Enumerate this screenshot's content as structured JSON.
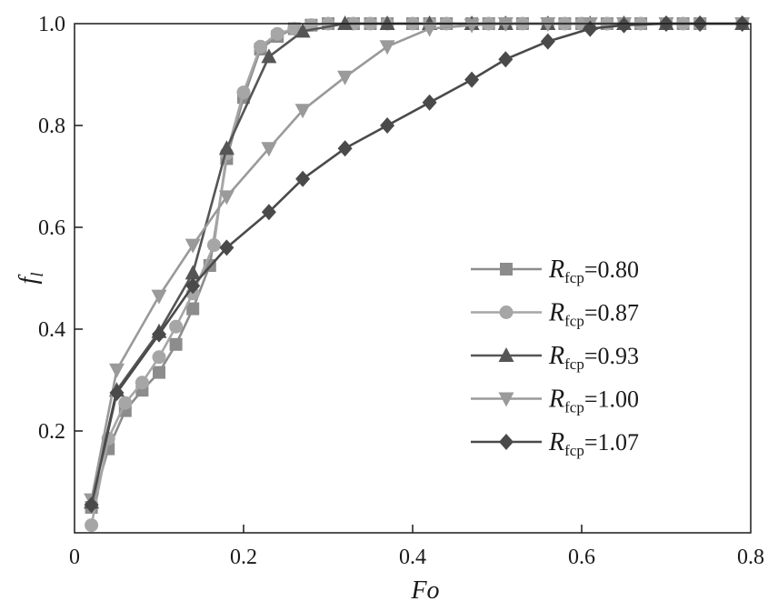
{
  "chart_data": {
    "type": "line",
    "title": "",
    "xlabel": "Fo",
    "ylabel": {
      "main": "f",
      "sub": "l"
    },
    "xlim": [
      0,
      0.8
    ],
    "ylim": [
      0,
      1.0
    ],
    "x_ticks": [
      0,
      0.2,
      0.4,
      0.6,
      0.8
    ],
    "y_ticks": [
      0.2,
      0.4,
      0.6,
      0.8,
      1.0
    ],
    "x_tick_labels": [
      "0",
      "0.2",
      "0.4",
      "0.6",
      "0.8"
    ],
    "y_tick_labels": [
      "0.2",
      "0.4",
      "0.6",
      "0.8",
      "1.0"
    ],
    "grid": false,
    "legend_position": "right",
    "series": [
      {
        "name": "R_fcp=0.80",
        "label_symbol": "R",
        "label_sub": "fcp",
        "label_value": "=0.80",
        "marker": "square",
        "color": "#8c8c8c",
        "x": [
          0.02,
          0.04,
          0.06,
          0.08,
          0.1,
          0.12,
          0.14,
          0.16,
          0.18,
          0.2,
          0.22,
          0.24,
          0.26,
          0.28,
          0.3,
          0.33,
          0.35,
          0.37,
          0.4,
          0.42,
          0.44,
          0.47,
          0.49,
          0.51,
          0.53,
          0.56,
          0.58,
          0.6,
          0.63,
          0.65,
          0.67,
          0.7,
          0.72,
          0.74,
          0.79
        ],
        "y": [
          0.05,
          0.165,
          0.24,
          0.28,
          0.315,
          0.37,
          0.44,
          0.525,
          0.735,
          0.855,
          0.95,
          0.975,
          0.99,
          0.997,
          1.0,
          1.0,
          1.0,
          1.0,
          1.0,
          1.0,
          1.0,
          1.0,
          1.0,
          1.0,
          1.0,
          1.0,
          1.0,
          1.0,
          1.0,
          1.0,
          1.0,
          1.0,
          1.0,
          1.0,
          1.0
        ]
      },
      {
        "name": "R_fcp=0.87",
        "label_symbol": "R",
        "label_sub": "fcp",
        "label_value": "=0.87",
        "marker": "circle",
        "color": "#a6a6a6",
        "x": [
          0.02,
          0.04,
          0.06,
          0.08,
          0.1,
          0.12,
          0.14,
          0.165,
          0.18,
          0.2,
          0.22,
          0.24,
          0.26,
          0.28,
          0.3,
          0.33,
          0.35,
          0.37,
          0.4,
          0.42,
          0.44,
          0.47,
          0.49,
          0.51,
          0.53,
          0.56,
          0.58,
          0.6,
          0.63,
          0.65,
          0.67,
          0.7,
          0.72,
          0.74,
          0.79
        ],
        "y": [
          0.015,
          0.185,
          0.255,
          0.295,
          0.345,
          0.405,
          0.47,
          0.565,
          0.745,
          0.865,
          0.955,
          0.98,
          0.99,
          0.997,
          1.0,
          1.0,
          1.0,
          1.0,
          1.0,
          1.0,
          1.0,
          1.0,
          1.0,
          1.0,
          1.0,
          1.0,
          1.0,
          1.0,
          1.0,
          1.0,
          1.0,
          1.0,
          1.0,
          1.0,
          1.0
        ]
      },
      {
        "name": "R_fcp=0.93",
        "label_symbol": "R",
        "label_sub": "fcp",
        "label_value": "=0.93",
        "marker": "triangle-up",
        "color": "#555555",
        "x": [
          0.02,
          0.05,
          0.1,
          0.14,
          0.18,
          0.23,
          0.27,
          0.32,
          0.37,
          0.42,
          0.47,
          0.51,
          0.56,
          0.61,
          0.65,
          0.7,
          0.79
        ],
        "y": [
          0.06,
          0.28,
          0.395,
          0.51,
          0.755,
          0.935,
          0.985,
          1.0,
          1.0,
          1.0,
          1.0,
          1.0,
          1.0,
          1.0,
          1.0,
          1.0,
          1.0
        ]
      },
      {
        "name": "R_fcp=1.00",
        "label_symbol": "R",
        "label_sub": "fcp",
        "label_value": "=1.00",
        "marker": "triangle-down",
        "color": "#9a9a9a",
        "x": [
          0.02,
          0.05,
          0.1,
          0.14,
          0.18,
          0.23,
          0.27,
          0.32,
          0.37,
          0.42,
          0.47,
          0.51,
          0.56,
          0.61,
          0.65,
          0.7,
          0.79
        ],
        "y": [
          0.065,
          0.32,
          0.465,
          0.565,
          0.66,
          0.755,
          0.83,
          0.895,
          0.955,
          0.99,
          0.997,
          1.0,
          1.0,
          1.0,
          1.0,
          1.0,
          1.0
        ]
      },
      {
        "name": "R_fcp=1.07",
        "label_symbol": "R",
        "label_sub": "fcp",
        "label_value": "=1.07",
        "marker": "diamond",
        "color": "#4a4a4a",
        "x": [
          0.02,
          0.05,
          0.1,
          0.14,
          0.18,
          0.23,
          0.27,
          0.32,
          0.37,
          0.42,
          0.47,
          0.51,
          0.56,
          0.61,
          0.65,
          0.7,
          0.74,
          0.79
        ],
        "y": [
          0.055,
          0.275,
          0.39,
          0.485,
          0.56,
          0.63,
          0.695,
          0.755,
          0.8,
          0.845,
          0.89,
          0.93,
          0.965,
          0.99,
          0.997,
          1.0,
          1.0,
          1.0
        ]
      }
    ]
  }
}
